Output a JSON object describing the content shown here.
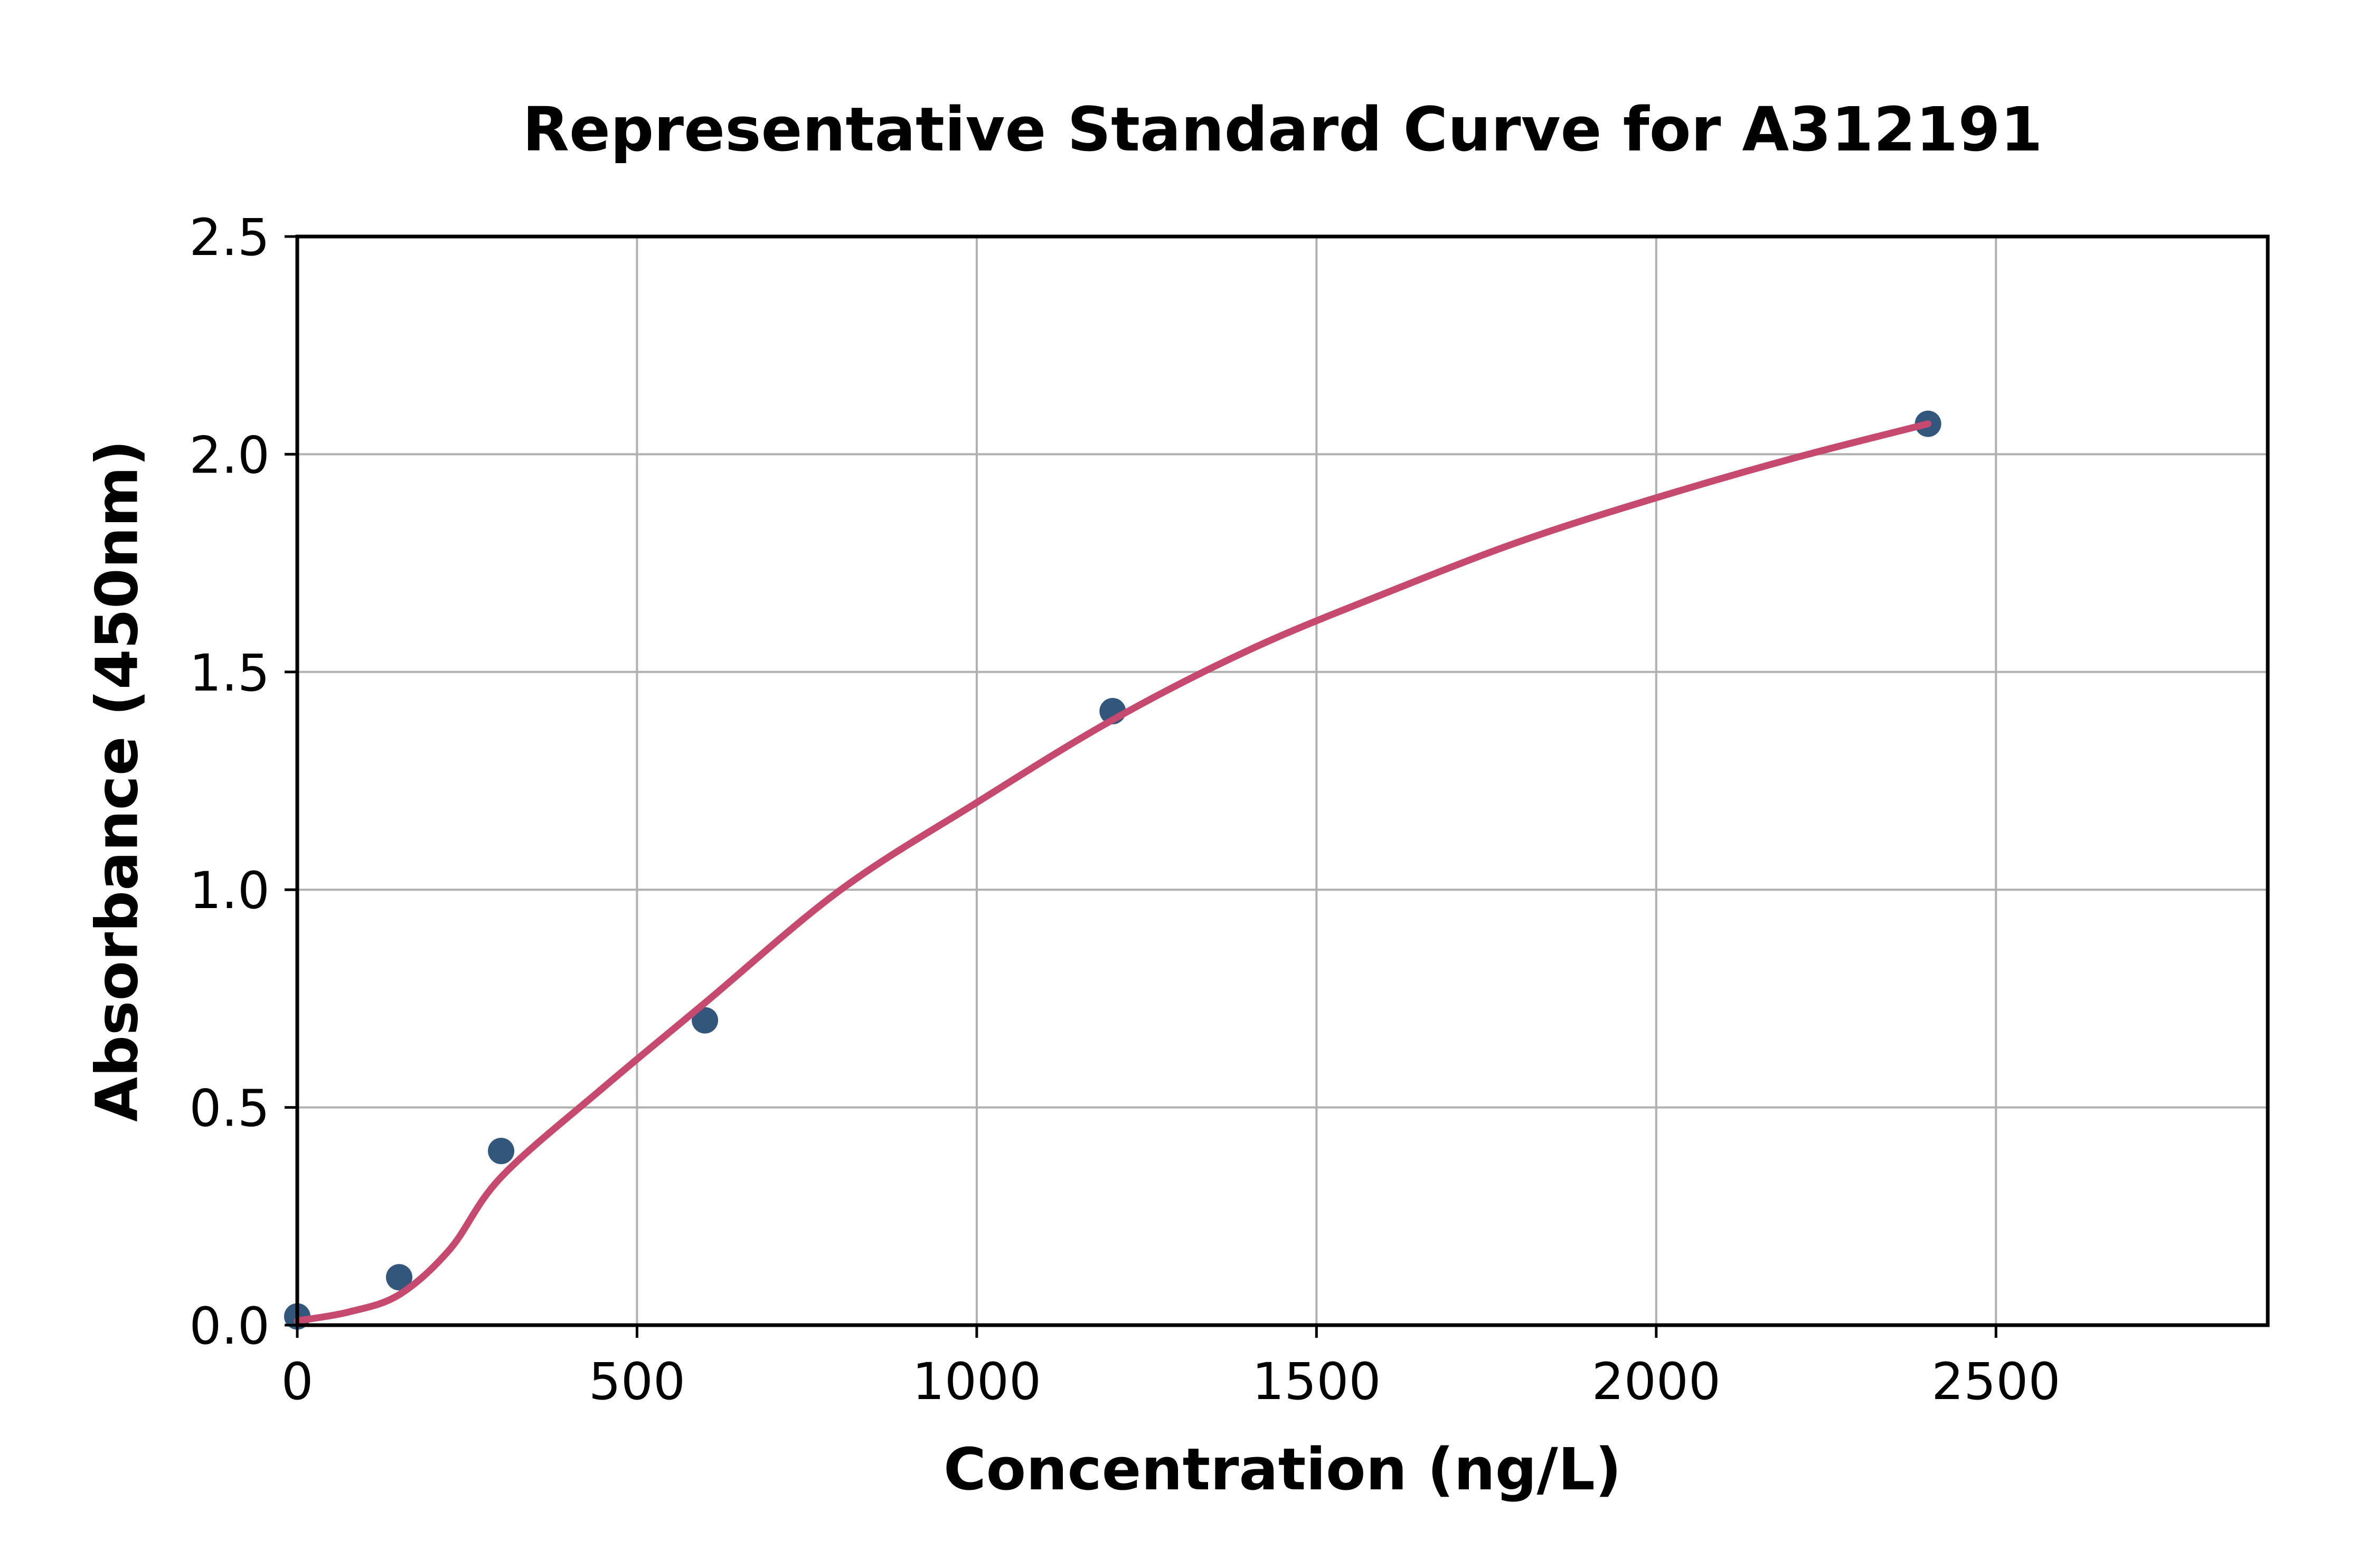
{
  "chart_data": {
    "type": "scatter",
    "title": "Representative Standard Curve for A312191",
    "xlabel": "Concentration (ng/L)",
    "ylabel": "Absorbance (450nm)",
    "xlim": [
      0,
      2900
    ],
    "ylim": [
      0,
      2.5
    ],
    "xticks": [
      0,
      500,
      1000,
      1500,
      2000,
      2500
    ],
    "xtick_labels": [
      "0",
      "500",
      "1000",
      "1500",
      "2000",
      "2500"
    ],
    "yticks": [
      0.0,
      0.5,
      1.0,
      1.5,
      2.0,
      2.5
    ],
    "ytick_labels": [
      "0.0",
      "0.5",
      "1.0",
      "1.5",
      "2.0",
      "2.5"
    ],
    "grid": true,
    "legend": "none",
    "series": [
      {
        "name": "standard-points",
        "type": "scatter",
        "points": [
          [
            0,
            0.02
          ],
          [
            150,
            0.11
          ],
          [
            300,
            0.4
          ],
          [
            600,
            0.7
          ],
          [
            1200,
            1.41
          ],
          [
            2400,
            2.07
          ]
        ]
      },
      {
        "name": "fitted-curve",
        "type": "line",
        "points": [
          [
            0,
            0.01
          ],
          [
            75,
            0.03
          ],
          [
            150,
            0.07
          ],
          [
            225,
            0.175
          ],
          [
            300,
            0.34
          ],
          [
            450,
            0.545
          ],
          [
            600,
            0.74
          ],
          [
            800,
            1.0
          ],
          [
            1000,
            1.2
          ],
          [
            1200,
            1.39
          ],
          [
            1400,
            1.55
          ],
          [
            1600,
            1.68
          ],
          [
            1800,
            1.8
          ],
          [
            2000,
            1.9
          ],
          [
            2200,
            1.99
          ],
          [
            2400,
            2.07
          ]
        ]
      }
    ],
    "colors": {
      "point": "#32567c",
      "curve": "#c6496f",
      "grid": "#b0b0b0",
      "axis": "#000000",
      "background": "#ffffff"
    }
  }
}
